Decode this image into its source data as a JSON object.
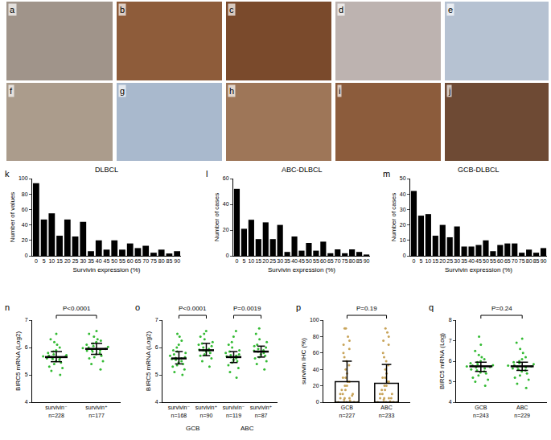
{
  "images": [
    {
      "panel": "a",
      "color": "#a0948a"
    },
    {
      "panel": "b",
      "color": "#8e5c3a"
    },
    {
      "panel": "c",
      "color": "#7a4a2c"
    },
    {
      "panel": "d",
      "color": "#bdb3b0"
    },
    {
      "panel": "e",
      "color": "#b6c2d2"
    },
    {
      "panel": "f",
      "color": "#ab9c8c"
    },
    {
      "panel": "g",
      "color": "#a9b9cd"
    },
    {
      "panel": "h",
      "color": "#9e7658"
    },
    {
      "panel": "i",
      "color": "#8c5c3c"
    },
    {
      "panel": "j",
      "color": "#6e4a34"
    }
  ],
  "chart_data": [
    {
      "panel": "k",
      "type": "bar",
      "title": "DLBCL",
      "x_label": "Survivin expression (%)",
      "y_label": "Number of values",
      "categories": [
        "0",
        "5",
        "10",
        "15",
        "20",
        "25",
        "30",
        "35",
        "40",
        "45",
        "50",
        "55",
        "60",
        "65",
        "70",
        "75",
        "80",
        "85",
        "90"
      ],
      "values": [
        94,
        47,
        55,
        26,
        47,
        25,
        44,
        6,
        20,
        8,
        20,
        8,
        16,
        10,
        13,
        4,
        8,
        3,
        6
      ],
      "color": "#000000",
      "ylim": [
        0,
        100
      ],
      "yticks": [
        0,
        20,
        40,
        60,
        80,
        100
      ]
    },
    {
      "panel": "l",
      "type": "bar",
      "title": "ABC-DLBCL",
      "x_label": "Survivin expression (%)",
      "y_label": "Number of cases",
      "categories": [
        "0",
        "5",
        "10",
        "15",
        "20",
        "25",
        "30",
        "35",
        "40",
        "45",
        "50",
        "55",
        "60",
        "65",
        "70",
        "75",
        "80",
        "85",
        "90"
      ],
      "values": [
        52,
        21,
        28,
        13,
        26,
        13,
        24,
        3,
        15,
        4,
        10,
        4,
        11,
        2,
        5,
        2,
        5,
        3,
        1
      ],
      "color": "#000000",
      "ylim": [
        0,
        60
      ],
      "yticks": [
        0,
        20,
        40,
        60
      ]
    },
    {
      "panel": "m",
      "type": "bar",
      "title": "GCB-DLBCL",
      "x_label": "Survivin expression (%)",
      "y_label": "Number of cases",
      "categories": [
        "0",
        "5",
        "10",
        "15",
        "20",
        "25",
        "30",
        "35",
        "40",
        "45",
        "50",
        "55",
        "60",
        "65",
        "70",
        "75",
        "80",
        "85",
        "90"
      ],
      "values": [
        42,
        26,
        27,
        13,
        20,
        12,
        19,
        6,
        6,
        7,
        10,
        3,
        7,
        8,
        8,
        2,
        4,
        2,
        5
      ],
      "color": "#000000",
      "ylim": [
        0,
        50
      ],
      "yticks": [
        0,
        10,
        20,
        30,
        40,
        50
      ]
    },
    {
      "panel": "n",
      "type": "dot",
      "y_label": "BIRC5 mRNA (Log2)",
      "categories": [
        "survivin⁻\nn=228",
        "survivin⁺\nn=177"
      ],
      "color": "#33bb33",
      "ylim": [
        4,
        7
      ],
      "yticks": [
        4,
        5,
        6,
        7
      ],
      "groups": [
        {
          "values": [
            5.0,
            5.15,
            5.25,
            5.3,
            5.4,
            5.45,
            5.5,
            5.55,
            5.6,
            5.62,
            5.65,
            5.68,
            5.7,
            5.72,
            5.75,
            5.8,
            5.85,
            5.9,
            6.0,
            6.1,
            6.2,
            6.3,
            6.5,
            5.58,
            5.66
          ],
          "median": 5.65,
          "q1": 5.48,
          "q3": 5.85
        },
        {
          "values": [
            5.2,
            5.4,
            5.5,
            5.6,
            5.7,
            5.75,
            5.8,
            5.85,
            5.9,
            5.92,
            5.95,
            5.98,
            6.0,
            6.05,
            6.1,
            6.15,
            6.2,
            6.3,
            6.4,
            6.5,
            6.6,
            5.88,
            6.02,
            5.65,
            6.25
          ],
          "median": 5.95,
          "q1": 5.75,
          "q3": 6.15
        }
      ],
      "comparisons": [
        {
          "groups": [
            0,
            1
          ],
          "label": "P<0.0001"
        }
      ]
    },
    {
      "panel": "o",
      "type": "dot",
      "y_label": "BIRC5 mRNA (Log2)",
      "categories": [
        "survivin⁻\nn=168",
        "survivin⁺\nn=90",
        "survivin⁻\nn=119",
        "survivin⁺\nn=87"
      ],
      "color": "#33bb33",
      "ylim": [
        4,
        7
      ],
      "yticks": [
        4,
        5,
        6,
        7
      ],
      "groups": [
        {
          "values": [
            5.0,
            5.1,
            5.2,
            5.3,
            5.35,
            5.4,
            5.45,
            5.5,
            5.55,
            5.58,
            5.6,
            5.62,
            5.65,
            5.7,
            5.75,
            5.8,
            5.85,
            5.9,
            6.0,
            6.1,
            6.25,
            6.4,
            6.5
          ],
          "median": 5.6,
          "q1": 5.4,
          "q3": 5.85
        },
        {
          "values": [
            5.3,
            5.5,
            5.6,
            5.7,
            5.75,
            5.8,
            5.85,
            5.88,
            5.9,
            5.92,
            5.95,
            6.0,
            6.05,
            6.1,
            6.15,
            6.2,
            6.3,
            6.4,
            6.5,
            6.6
          ],
          "median": 5.9,
          "q1": 5.7,
          "q3": 6.15
        },
        {
          "values": [
            4.9,
            5.1,
            5.25,
            5.35,
            5.45,
            5.5,
            5.55,
            5.6,
            5.65,
            5.68,
            5.7,
            5.72,
            5.75,
            5.8,
            5.85,
            5.9,
            6.0,
            6.1,
            6.2,
            6.4,
            6.6
          ],
          "median": 5.65,
          "q1": 5.45,
          "q3": 5.85
        },
        {
          "values": [
            5.2,
            5.4,
            5.5,
            5.6,
            5.65,
            5.7,
            5.75,
            5.8,
            5.85,
            5.88,
            5.9,
            5.95,
            6.0,
            6.05,
            6.1,
            6.2,
            6.3,
            6.5,
            6.7
          ],
          "median": 5.85,
          "q1": 5.65,
          "q3": 6.05
        }
      ],
      "group_labels": [
        {
          "text": "GCB",
          "groups": [
            0,
            1
          ]
        },
        {
          "text": "ABC",
          "groups": [
            2,
            3
          ]
        }
      ],
      "comparisons": [
        {
          "groups": [
            0,
            1
          ],
          "label": "P<0.0001"
        },
        {
          "groups": [
            2,
            3
          ],
          "label": "P=0.0019"
        }
      ]
    },
    {
      "panel": "p",
      "type": "dot",
      "y_label": "survivin IHC (%)",
      "categories": [
        "GCB\nn=227",
        "ABC\nn=233"
      ],
      "color": "#c8a45a",
      "ylim": [
        0,
        100
      ],
      "yticks": [
        0,
        20,
        40,
        60,
        80,
        100
      ],
      "groups": [
        {
          "values": [
            0,
            0,
            0,
            0,
            0,
            0,
            0,
            2,
            3,
            5,
            5,
            5,
            8,
            10,
            10,
            10,
            15,
            15,
            20,
            20,
            25,
            25,
            30,
            30,
            35,
            40,
            45,
            50,
            55,
            60,
            65,
            70,
            75,
            80,
            90,
            90
          ],
          "mean": 25,
          "error": 25
        },
        {
          "values": [
            0,
            0,
            0,
            0,
            0,
            0,
            0,
            1,
            3,
            5,
            5,
            5,
            5,
            10,
            10,
            10,
            15,
            15,
            20,
            20,
            25,
            25,
            30,
            30,
            35,
            40,
            45,
            50,
            55,
            60,
            70,
            75,
            80,
            85,
            90
          ],
          "mean": 23,
          "error": 23
        }
      ],
      "comparisons": [
        {
          "groups": [
            0,
            1
          ],
          "label": "P=0.19"
        }
      ]
    },
    {
      "panel": "q",
      "type": "dot",
      "y_label": "BIRC5 mRNA (Log)",
      "categories": [
        "GCB\nn=243",
        "ABC\nn=229"
      ],
      "color": "#33bb33",
      "ylim": [
        4,
        8
      ],
      "yticks": [
        4,
        5,
        6,
        7,
        8
      ],
      "groups": [
        {
          "values": [
            4.8,
            5.0,
            5.1,
            5.2,
            5.3,
            5.4,
            5.45,
            5.5,
            5.55,
            5.6,
            5.65,
            5.7,
            5.72,
            5.75,
            5.78,
            5.8,
            5.85,
            5.9,
            5.95,
            6.0,
            6.1,
            6.2,
            6.3,
            6.5,
            6.8,
            7.2
          ],
          "median": 5.75,
          "q1": 5.5,
          "q3": 5.95
        },
        {
          "values": [
            4.7,
            4.9,
            5.1,
            5.2,
            5.3,
            5.4,
            5.5,
            5.55,
            5.6,
            5.65,
            5.7,
            5.72,
            5.75,
            5.78,
            5.8,
            5.85,
            5.9,
            5.95,
            6.0,
            6.1,
            6.2,
            6.4,
            6.6,
            6.9,
            7.1
          ],
          "median": 5.75,
          "q1": 5.55,
          "q3": 5.95
        }
      ],
      "comparisons": [
        {
          "groups": [
            0,
            1
          ],
          "label": "P=0.24"
        }
      ]
    }
  ]
}
